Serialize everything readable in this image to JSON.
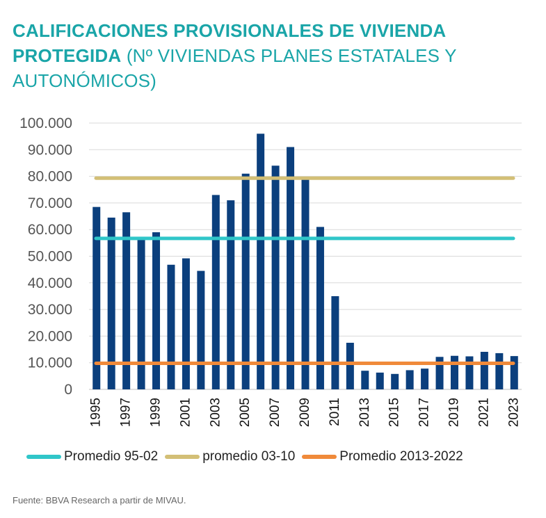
{
  "title": {
    "bold": "CALIFICACIONES PROVISIONALES DE VIVIENDA PROTEGIDA",
    "normal": "(Nº VIVIENDAS PLANES ESTATALES Y AUTONÓMICOS)"
  },
  "source": "Fuente: BBVA Research a partir de MIVAU.",
  "colors": {
    "title": "#1aa5a8",
    "bars": "#0b3f7d",
    "avg_95_02": "#30c6c9",
    "avg_03_10": "#d3bf76",
    "avg_2013_2022": "#f08a3a",
    "grid": "#d9d9d9",
    "tick_text": "#555555"
  },
  "chart_data": {
    "type": "bar",
    "categories": [
      "1995",
      "1996",
      "1997",
      "1998",
      "1999",
      "2000",
      "2001",
      "2002",
      "2003",
      "2004",
      "2005",
      "2006",
      "2007",
      "2008",
      "2009",
      "2010",
      "2011",
      "2012",
      "2013",
      "2014",
      "2015",
      "2016",
      "2017",
      "2018",
      "2019",
      "2020",
      "2021",
      "2022",
      "2023"
    ],
    "x_tick_labels": [
      "1995",
      "1997",
      "1999",
      "2001",
      "2003",
      "2005",
      "2007",
      "2009",
      "2011",
      "2013",
      "2015",
      "2017",
      "2019",
      "2021",
      "2023"
    ],
    "values": [
      68500,
      64500,
      66500,
      57000,
      59000,
      46800,
      49200,
      44500,
      73000,
      71000,
      81000,
      96000,
      84000,
      91000,
      79000,
      61000,
      35000,
      17500,
      7000,
      6300,
      5800,
      7200,
      7800,
      12200,
      12600,
      12400,
      14100,
      13600,
      12500
    ],
    "ylim": [
      0,
      100000
    ],
    "y_ticks": [
      0,
      10000,
      20000,
      30000,
      40000,
      50000,
      60000,
      70000,
      80000,
      90000,
      100000
    ],
    "y_tick_labels": [
      "0",
      "10.000",
      "20.000",
      "30.000",
      "40.000",
      "50.000",
      "60.000",
      "70.000",
      "80.000",
      "90.000",
      "100.000"
    ],
    "reference_lines": [
      {
        "name": "Promedio 95-02",
        "value": 56700,
        "color_key": "avg_95_02"
      },
      {
        "name": "promedio 03-10",
        "value": 79300,
        "color_key": "avg_03_10"
      },
      {
        "name": "Promedio 2013-2022",
        "value": 9800,
        "color_key": "avg_2013_2022"
      }
    ],
    "grid": true,
    "legend_position": "bottom",
    "xlabel": "",
    "ylabel": ""
  }
}
